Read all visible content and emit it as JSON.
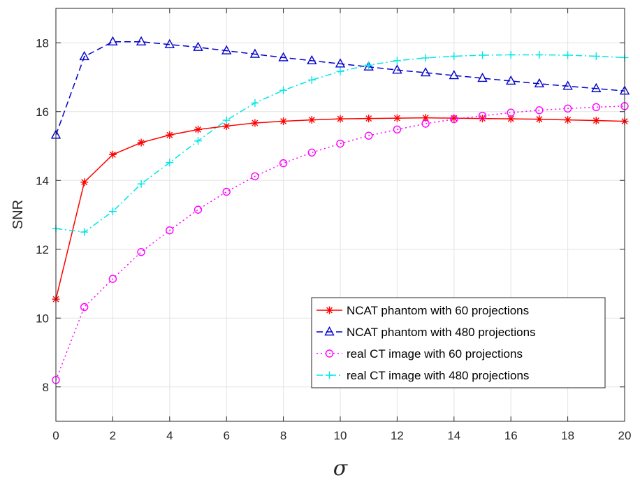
{
  "chart_data": {
    "type": "line",
    "xlabel": "σ",
    "ylabel": "SNR",
    "xlim": [
      0,
      20
    ],
    "ylim": [
      7,
      19
    ],
    "xticks": [
      0,
      2,
      4,
      6,
      8,
      10,
      12,
      14,
      16,
      18,
      20
    ],
    "yticks": [
      8,
      10,
      12,
      14,
      16,
      18
    ],
    "grid": true,
    "legend_position": "bottom-right",
    "x": [
      0,
      1,
      2,
      3,
      4,
      5,
      6,
      7,
      8,
      9,
      10,
      11,
      12,
      13,
      14,
      15,
      16,
      17,
      18,
      19,
      20
    ],
    "series": [
      {
        "name": "NCAT phantom with 60 projections",
        "color": "#ff0000",
        "line_style": "solid",
        "marker": "asterisk",
        "values": [
          10.55,
          13.95,
          14.75,
          15.1,
          15.32,
          15.48,
          15.58,
          15.67,
          15.72,
          15.76,
          15.79,
          15.8,
          15.81,
          15.82,
          15.81,
          15.8,
          15.79,
          15.78,
          15.76,
          15.74,
          15.72
        ]
      },
      {
        "name": "NCAT phantom with 480 projections",
        "color": "#0000cc",
        "line_style": "dashed",
        "marker": "triangle",
        "values": [
          15.32,
          17.6,
          18.03,
          18.03,
          17.95,
          17.87,
          17.77,
          17.67,
          17.57,
          17.48,
          17.39,
          17.3,
          17.21,
          17.13,
          17.05,
          16.97,
          16.89,
          16.81,
          16.74,
          16.67,
          16.6
        ]
      },
      {
        "name": "real CT image with 60 projections",
        "color": "#ff00ff",
        "line_style": "dotted",
        "marker": "circle",
        "values": [
          8.2,
          10.32,
          11.14,
          11.92,
          12.55,
          13.15,
          13.67,
          14.12,
          14.5,
          14.81,
          15.07,
          15.3,
          15.48,
          15.65,
          15.78,
          15.88,
          15.97,
          16.04,
          16.09,
          16.13,
          16.16
        ]
      },
      {
        "name": "real CT image with 480 projections",
        "color": "#00e6e6",
        "line_style": "dashdot",
        "marker": "plus",
        "values": [
          12.6,
          12.5,
          13.1,
          13.9,
          14.52,
          15.15,
          15.75,
          16.25,
          16.62,
          16.92,
          17.17,
          17.35,
          17.48,
          17.56,
          17.61,
          17.64,
          17.65,
          17.65,
          17.64,
          17.61,
          17.57
        ]
      }
    ]
  }
}
